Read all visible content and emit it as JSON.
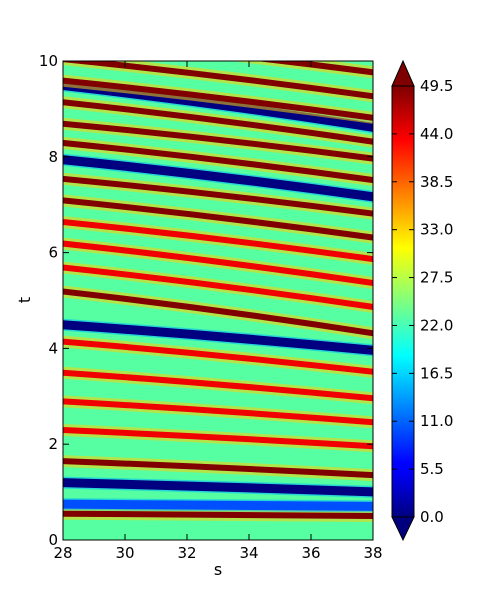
{
  "chart_data": {
    "type": "heatmap",
    "title": "",
    "xlabel": "s",
    "ylabel": "t",
    "xlim": [
      28,
      38
    ],
    "ylim": [
      0,
      10
    ],
    "x_ticks": [
      28,
      30,
      32,
      34,
      36,
      38
    ],
    "y_ticks": [
      0,
      2,
      4,
      6,
      8,
      10
    ],
    "colormap": "jet",
    "colorbar": {
      "range": [
        0.0,
        49.5
      ],
      "ticks": [
        "0.0",
        "5.5",
        "11.0",
        "16.5",
        "22.0",
        "27.5",
        "33.0",
        "38.5",
        "44.0",
        "49.5"
      ],
      "extend": "both",
      "extend_min_color": "#00007f",
      "extend_max_color": "#7f0000"
    },
    "features": [
      {
        "type": "ridge",
        "t_at_s28": 0.55,
        "t_at_s38": 0.5,
        "value": 49.5
      },
      {
        "type": "trough",
        "t_at_s28": 0.75,
        "t_at_s38": 0.7,
        "value": 10
      },
      {
        "type": "trough",
        "t_at_s28": 1.2,
        "t_at_s38": 1.0,
        "value": 0
      },
      {
        "type": "ridge",
        "t_at_s28": 1.65,
        "t_at_s38": 1.35,
        "value": 49.5
      },
      {
        "type": "ridge",
        "t_at_s28": 2.3,
        "t_at_s38": 1.95,
        "value": 44
      },
      {
        "type": "ridge",
        "t_at_s28": 2.9,
        "t_at_s38": 2.45,
        "value": 44
      },
      {
        "type": "ridge",
        "t_at_s28": 3.5,
        "t_at_s38": 2.95,
        "value": 44
      },
      {
        "type": "ridge",
        "t_at_s28": 4.15,
        "t_at_s38": 3.5,
        "value": 44
      },
      {
        "type": "trough",
        "t_at_s28": 4.5,
        "t_at_s38": 3.95,
        "value": 0
      },
      {
        "type": "ridge",
        "t_at_s28": 5.2,
        "t_at_s38": 4.3,
        "value": 49.5
      },
      {
        "type": "ridge",
        "t_at_s28": 5.7,
        "t_at_s38": 4.85,
        "value": 44
      },
      {
        "type": "ridge",
        "t_at_s28": 6.2,
        "t_at_s38": 5.35,
        "value": 44
      },
      {
        "type": "ridge",
        "t_at_s28": 6.65,
        "t_at_s38": 5.85,
        "value": 44
      },
      {
        "type": "ridge",
        "t_at_s28": 7.1,
        "t_at_s38": 6.3,
        "value": 49.5
      },
      {
        "type": "ridge",
        "t_at_s28": 7.55,
        "t_at_s38": 6.8,
        "value": 49.5
      },
      {
        "type": "trough",
        "t_at_s28": 7.95,
        "t_at_s38": 7.15,
        "value": 0
      },
      {
        "type": "ridge",
        "t_at_s28": 8.3,
        "t_at_s38": 7.5,
        "value": 49.5
      },
      {
        "type": "ridge",
        "t_at_s28": 8.7,
        "t_at_s38": 7.95,
        "value": 49.5
      },
      {
        "type": "trough",
        "t_at_s28": 9.5,
        "t_at_s38": 8.6,
        "value": 0
      },
      {
        "type": "ridge",
        "t_at_s28": 9.15,
        "t_at_s38": 8.3,
        "value": 49.5
      },
      {
        "type": "ridge",
        "t_at_s28": 9.6,
        "t_at_s38": 8.8,
        "value": 49.5
      },
      {
        "type": "ridge",
        "t_at_s28": 10.05,
        "t_at_s38": 9.25,
        "value": 49.5
      },
      {
        "type": "ridge",
        "t_at_s28": 10.5,
        "t_at_s38": 9.75,
        "value": 49.5
      }
    ]
  }
}
